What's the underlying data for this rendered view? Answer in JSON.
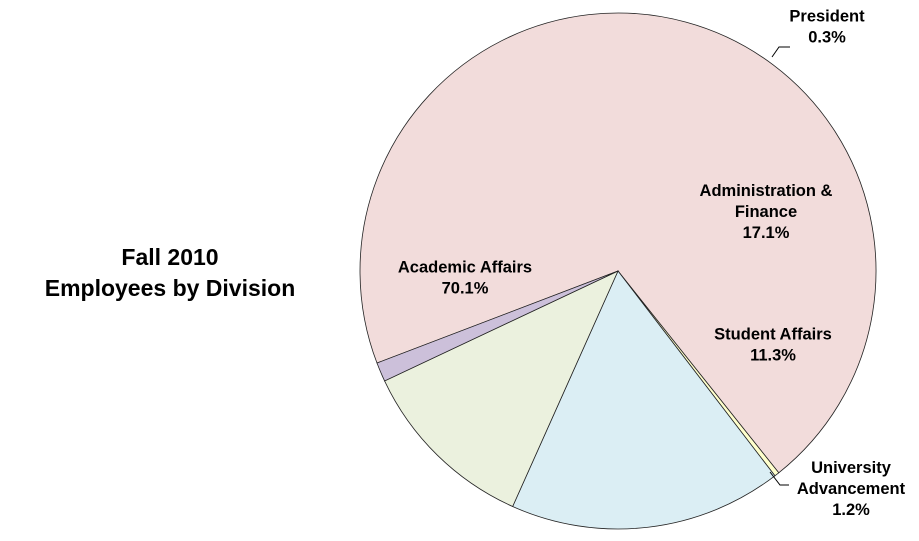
{
  "chart_data": {
    "type": "pie",
    "title": [
      "Fall 2010",
      "Employees by Division"
    ],
    "slices": [
      {
        "name": "Academic Affairs",
        "value": 70.1,
        "label": [
          "Academic Affairs",
          "70.1%"
        ],
        "color": "#f2dcdb"
      },
      {
        "name": "President",
        "value": 0.3,
        "label": [
          "President",
          "0.3%"
        ],
        "color": "#ffffcc"
      },
      {
        "name": "Administration & Finance",
        "value": 17.1,
        "label": [
          "Administration &",
          "Finance",
          "17.1%"
        ],
        "color": "#dbeef4"
      },
      {
        "name": "Student Affairs",
        "value": 11.3,
        "label": [
          "Student Affairs",
          "11.3%"
        ],
        "color": "#ebf1de"
      },
      {
        "name": "University Advancement",
        "value": 1.2,
        "label": [
          "University",
          "Advancement",
          "1.2%"
        ],
        "color": "#ccc0da"
      }
    ],
    "legend": "none"
  }
}
